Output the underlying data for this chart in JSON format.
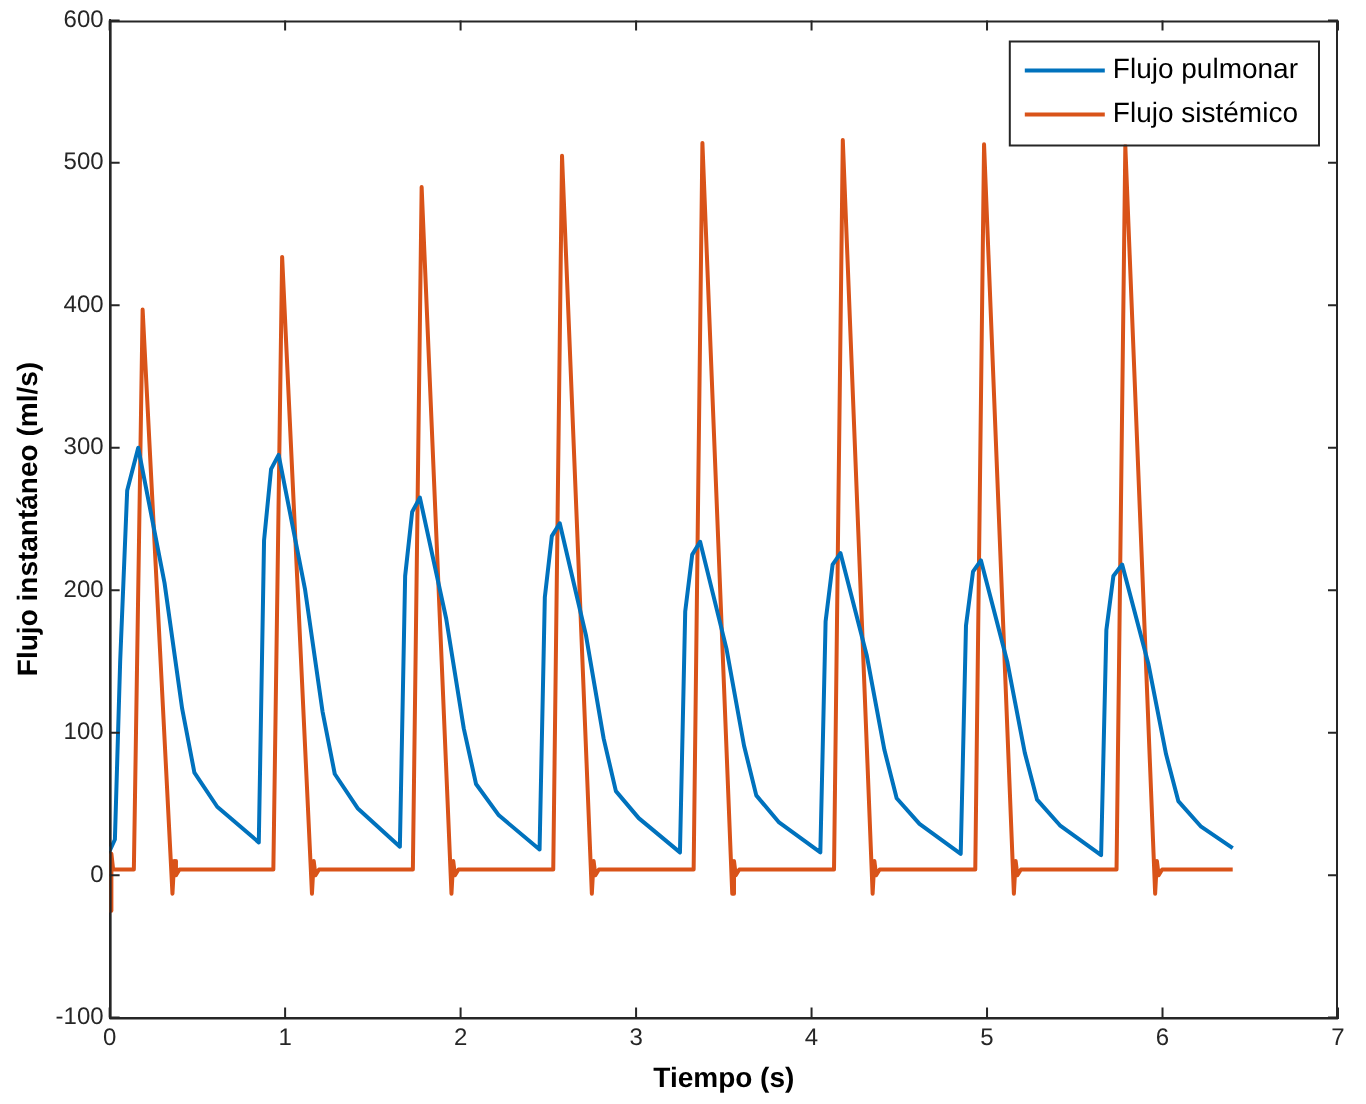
{
  "chart_data": {
    "type": "line",
    "xlabel": "Tiempo (s)",
    "ylabel": "Flujo instantáneo (ml/s)",
    "xlim": [
      0,
      7
    ],
    "xticks": [
      0,
      1,
      2,
      3,
      4,
      5,
      6,
      7
    ],
    "ylim": [
      -100,
      600
    ],
    "yticks": [
      -100,
      0,
      100,
      200,
      300,
      400,
      500,
      600
    ],
    "grid": false,
    "legend": "top right",
    "marker": "none",
    "line_style": "solid",
    "series": [
      {
        "name": "Flujo pulmonar",
        "color": "#0072bd",
        "x": [
          0,
          0.03,
          0.06,
          0.1,
          0.163,
          0.313,
          0.413,
          0.483,
          0.613,
          0.85,
          0.88,
          0.92,
          0.963,
          1.113,
          1.213,
          1.283,
          1.413,
          1.654,
          1.684,
          1.724,
          1.768,
          1.918,
          2.018,
          2.088,
          2.218,
          2.45,
          2.48,
          2.52,
          2.565,
          2.715,
          2.815,
          2.885,
          3.015,
          3.25,
          3.28,
          3.32,
          3.365,
          3.515,
          3.615,
          3.685,
          3.815,
          4.05,
          4.08,
          4.12,
          4.165,
          4.315,
          4.415,
          4.485,
          4.615,
          4.85,
          4.88,
          4.92,
          4.965,
          5.115,
          5.215,
          5.285,
          5.415,
          5.65,
          5.68,
          5.72,
          5.77,
          5.92,
          6.02,
          6.09,
          6.22,
          6.4
        ],
        "values": [
          17,
          25,
          150,
          270,
          300,
          205,
          117,
          72,
          48,
          23,
          235,
          285,
          295,
          201,
          115,
          71,
          47,
          20,
          210,
          255,
          265,
          180,
          103,
          64,
          42,
          18,
          195,
          238,
          247,
          168,
          96,
          59,
          40,
          16,
          185,
          225,
          234,
          159,
          91,
          56,
          37,
          16,
          178,
          218,
          226,
          154,
          88,
          54,
          36,
          15,
          175,
          213,
          221,
          150,
          86,
          53,
          35,
          14,
          172,
          210,
          218,
          148,
          85,
          52,
          34,
          19
        ]
      },
      {
        "name": "Flujo sistémico",
        "color": "#d95319",
        "x": [
          0,
          0.005,
          0.01,
          0.02,
          0.138,
          0.188,
          0.358,
          0.368,
          0.378,
          0.398,
          0.933,
          0.983,
          1.153,
          1.163,
          1.173,
          1.193,
          1.728,
          1.778,
          1.948,
          1.958,
          1.968,
          1.988,
          2.528,
          2.578,
          2.748,
          2.758,
          2.768,
          2.788,
          3.328,
          3.378,
          3.548,
          3.558,
          3.568,
          3.588,
          4.128,
          4.178,
          4.348,
          4.358,
          4.368,
          4.388,
          4.933,
          4.983,
          5.153,
          5.163,
          5.173,
          5.193,
          5.738,
          5.788,
          5.958,
          5.968,
          5.978,
          5.998,
          6.4
        ],
        "values": [
          15,
          -25,
          15,
          4,
          4,
          397,
          -13,
          10,
          0,
          4,
          4,
          434,
          -13,
          10,
          0,
          4,
          4,
          483,
          -13,
          10,
          0,
          4,
          4,
          505,
          -13,
          10,
          0,
          4,
          4,
          514,
          -13,
          10,
          0,
          4,
          4,
          516,
          -13,
          10,
          0,
          4,
          4,
          513,
          -13,
          10,
          0,
          4,
          4,
          512,
          -13,
          10,
          0,
          4,
          4
        ]
      }
    ]
  }
}
